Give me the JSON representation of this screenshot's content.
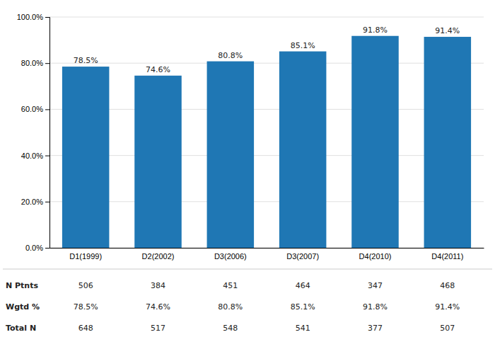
{
  "chart_data": {
    "type": "bar",
    "categories": [
      "D1(1999)",
      "D2(2002)",
      "D3(2006)",
      "D3(2007)",
      "D4(2010)",
      "D4(2011)"
    ],
    "values": [
      78.5,
      74.6,
      80.8,
      85.1,
      91.8,
      91.4
    ],
    "value_labels": [
      "78.5%",
      "74.6%",
      "80.8%",
      "85.1%",
      "91.8%",
      "91.4%"
    ],
    "data_labels": true,
    "ylim": [
      0,
      100
    ],
    "yticks": [
      {
        "value": 0,
        "label": "0.0%"
      },
      {
        "value": 20,
        "label": "20.0%"
      },
      {
        "value": 40,
        "label": "40.0%"
      },
      {
        "value": 60,
        "label": "60.0%"
      },
      {
        "value": 80,
        "label": "80.0%"
      },
      {
        "value": 100,
        "label": "100.0%"
      }
    ],
    "grid": true,
    "table": [
      {
        "label": "N Ptnts",
        "values": [
          506,
          384,
          451,
          464,
          347,
          468
        ]
      },
      {
        "label": "Wgtd %",
        "values": [
          78.5,
          74.6,
          80.8,
          85.1,
          91.8,
          91.4
        ],
        "value_labels": [
          "78.5%",
          "74.6%",
          "80.8%",
          "85.1%",
          "91.8%",
          "91.4%"
        ]
      },
      {
        "label": "Total N",
        "values": [
          648,
          517,
          548,
          541,
          377,
          507
        ]
      }
    ]
  }
}
